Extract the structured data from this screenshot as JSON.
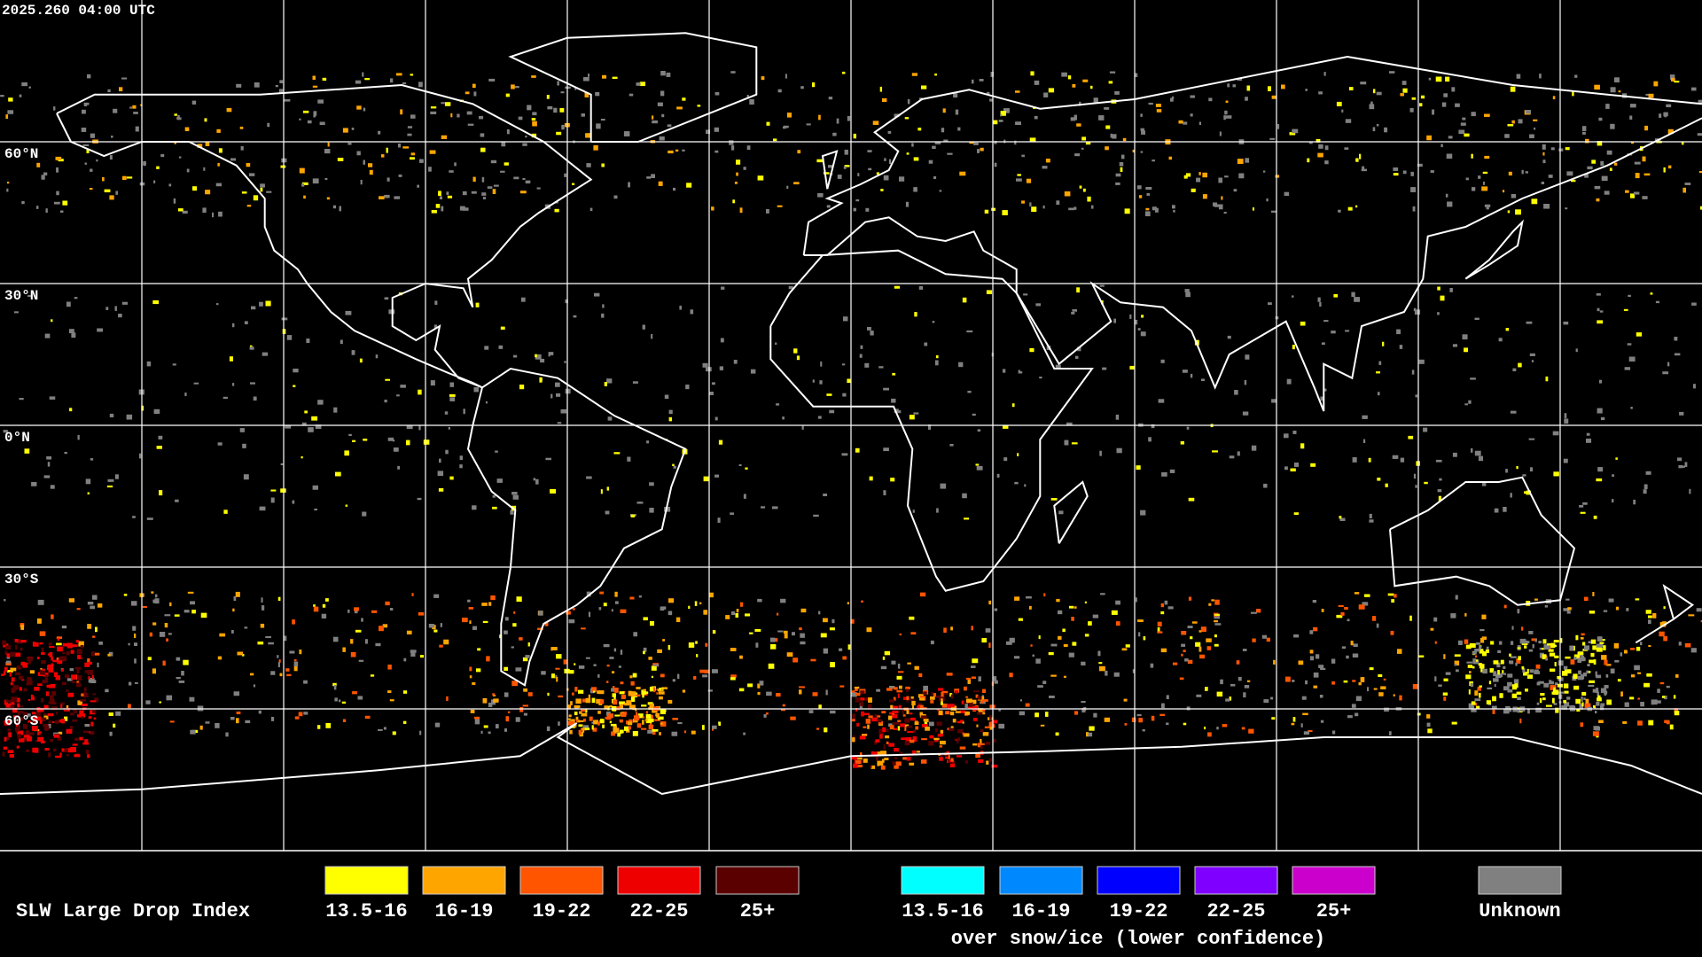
{
  "timestamp": "2025.260 04:00 UTC",
  "lat_labels": [
    "60°N",
    "30°N",
    "0°N",
    "30°S",
    "60°S"
  ],
  "legend": {
    "title": "SLW Large Drop Index",
    "groups": [
      {
        "items": [
          {
            "label": "13.5-16",
            "color": "#ffff00"
          },
          {
            "label": "16-19",
            "color": "#ffa500"
          },
          {
            "label": "19-22",
            "color": "#ff5500"
          },
          {
            "label": "22-25",
            "color": "#ee0000"
          },
          {
            "label": "25+",
            "color": "#5a0000"
          }
        ]
      },
      {
        "items": [
          {
            "label": "13.5-16",
            "color": "#00ffff"
          },
          {
            "label": "16-19",
            "color": "#0088ff"
          },
          {
            "label": "19-22",
            "color": "#0000ff"
          },
          {
            "label": "22-25",
            "color": "#7f00ff"
          },
          {
            "label": "25+",
            "color": "#cc00cc"
          }
        ],
        "caption": "over snow/ice (lower confidence)"
      },
      {
        "items": [
          {
            "label": "Unknown",
            "color": "#808080"
          }
        ]
      }
    ]
  }
}
